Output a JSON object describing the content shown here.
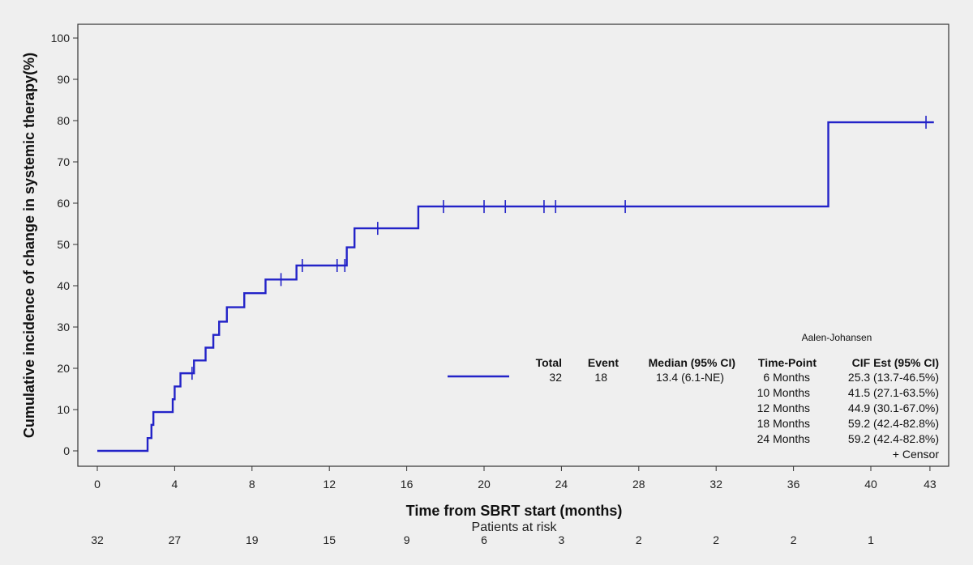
{
  "chart_data": {
    "type": "line",
    "title": "",
    "xlabel": "Time from SBRT start (months)",
    "ylabel": "Cumulative incidence of change in systemic therapy(%)",
    "ylim": [
      0,
      100
    ],
    "grid": false,
    "line_color": "#2323c8",
    "x_ticks": [
      {
        "value": 0,
        "label": "0"
      },
      {
        "value": 4,
        "label": "4"
      },
      {
        "value": 8,
        "label": "8"
      },
      {
        "value": 12,
        "label": "12"
      },
      {
        "value": 16,
        "label": "16"
      },
      {
        "value": 20,
        "label": "20"
      },
      {
        "value": 24,
        "label": "24"
      },
      {
        "value": 28,
        "label": "28"
      },
      {
        "value": 32,
        "label": "32"
      },
      {
        "value": 36,
        "label": "36"
      },
      {
        "value": 40,
        "label": "40"
      },
      {
        "value": 43,
        "label": "43"
      }
    ],
    "y_ticks": [
      0,
      10,
      20,
      30,
      40,
      50,
      60,
      70,
      80,
      90,
      100
    ],
    "steps": [
      {
        "x": 0,
        "y": 0
      },
      {
        "x": 2.6,
        "y": 3.1
      },
      {
        "x": 2.8,
        "y": 6.3
      },
      {
        "x": 2.9,
        "y": 9.4
      },
      {
        "x": 3.9,
        "y": 12.5
      },
      {
        "x": 4.0,
        "y": 15.6
      },
      {
        "x": 4.3,
        "y": 18.8
      },
      {
        "x": 5.0,
        "y": 21.9
      },
      {
        "x": 5.6,
        "y": 25.0
      },
      {
        "x": 6.0,
        "y": 28.1
      },
      {
        "x": 6.3,
        "y": 31.3
      },
      {
        "x": 6.7,
        "y": 34.8
      },
      {
        "x": 7.6,
        "y": 38.2
      },
      {
        "x": 8.7,
        "y": 41.5
      },
      {
        "x": 10.3,
        "y": 44.9
      },
      {
        "x": 12.9,
        "y": 49.3
      },
      {
        "x": 13.3,
        "y": 53.9
      },
      {
        "x": 16.6,
        "y": 59.2
      },
      {
        "x": 37.8,
        "y": 79.6
      }
    ],
    "x_end": 43.2,
    "censors": [
      {
        "x": 4.9,
        "y": 18.8
      },
      {
        "x": 9.5,
        "y": 41.5
      },
      {
        "x": 10.6,
        "y": 44.9
      },
      {
        "x": 12.4,
        "y": 44.9
      },
      {
        "x": 12.8,
        "y": 44.9
      },
      {
        "x": 14.5,
        "y": 53.9
      },
      {
        "x": 17.9,
        "y": 59.2
      },
      {
        "x": 20.0,
        "y": 59.2
      },
      {
        "x": 21.1,
        "y": 59.2
      },
      {
        "x": 23.1,
        "y": 59.2
      },
      {
        "x": 23.7,
        "y": 59.2
      },
      {
        "x": 27.3,
        "y": 59.2
      },
      {
        "x": 42.8,
        "y": 79.6
      }
    ],
    "legend": {
      "method": "Aalen-Johansen",
      "headers": {
        "total": "Total",
        "event": "Event",
        "median": "Median (95% CI)",
        "timepoint": "Time-Point",
        "cif": "CIF Est (95% CI)"
      },
      "total": "32",
      "event": "18",
      "median": "13.4 (6.1-NE)",
      "rows": [
        {
          "timepoint": "6 Months",
          "cif": "25.3 (13.7-46.5%)"
        },
        {
          "timepoint": "10 Months",
          "cif": "41.5 (27.1-63.5%)"
        },
        {
          "timepoint": "12 Months",
          "cif": "44.9 (30.1-67.0%)"
        },
        {
          "timepoint": "18 Months",
          "cif": "59.2 (42.4-82.8%)"
        },
        {
          "timepoint": "24 Months",
          "cif": "59.2 (42.4-82.8%)"
        }
      ],
      "censor_label": "+  Censor"
    },
    "risk_table": {
      "label": "Patients at risk",
      "values": [
        {
          "x": 0,
          "n": "32"
        },
        {
          "x": 4,
          "n": "27"
        },
        {
          "x": 8,
          "n": "19"
        },
        {
          "x": 12,
          "n": "15"
        },
        {
          "x": 16,
          "n": "9"
        },
        {
          "x": 20,
          "n": "6"
        },
        {
          "x": 24,
          "n": "3"
        },
        {
          "x": 28,
          "n": "2"
        },
        {
          "x": 32,
          "n": "2"
        },
        {
          "x": 36,
          "n": "2"
        },
        {
          "x": 40,
          "n": "1"
        }
      ]
    }
  }
}
